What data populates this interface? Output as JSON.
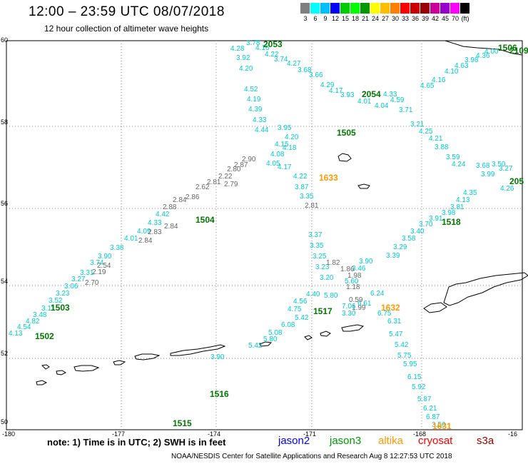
{
  "header": {
    "title": "12:00 – 23:59 UTC 08/07/2018",
    "subtitle": "12 hour collection of altimeter wave heights"
  },
  "scale": {
    "colors": [
      "#808080",
      "#00ffff",
      "#00bfff",
      "#0000ff",
      "#00cc00",
      "#00ff00",
      "#009900",
      "#ffff00",
      "#ffbf00",
      "#ff8000",
      "#ff0000",
      "#cc0000",
      "#990000",
      "#cc0099",
      "#9900cc",
      "#ff00ff",
      "#000000"
    ],
    "labels": [
      "3",
      "6",
      "9",
      "12",
      "15",
      "18",
      "21",
      "24",
      "27",
      "30",
      "33",
      "36",
      "39",
      "42",
      "45",
      "70",
      "(ft)"
    ]
  },
  "axes": {
    "y_labels": [
      "60",
      "58",
      "56",
      "54",
      "52",
      "50"
    ],
    "x_labels": [
      "-180",
      "-177",
      "-174",
      "-171",
      "-168",
      "-16"
    ]
  },
  "satellites": [
    {
      "name": "jason2",
      "color": "#0000ff"
    },
    {
      "name": "jason3",
      "color": "#009900"
    },
    {
      "name": "altika",
      "color": "#ff9900"
    },
    {
      "name": "cryosat",
      "color": "#ff0000"
    },
    {
      "name": "s3a",
      "color": "#990000"
    }
  ],
  "note": "note:  1) Time is in UTC;  2) SWH is in feet",
  "footer": "NOAA/NESDIS Center for Satellite Applications and Research     Aug  8 12:27:53 UTC 2018",
  "pass_labels": [
    {
      "text": "2053",
      "color": "#007700"
    },
    {
      "text": "2054",
      "color": "#007700"
    },
    {
      "text": "1505",
      "color": "#007700"
    },
    {
      "text": "1633",
      "color": "#ff9900"
    },
    {
      "text": "1504",
      "color": "#007700"
    },
    {
      "text": "1518",
      "color": "#007700"
    },
    {
      "text": "1503",
      "color": "#007700"
    },
    {
      "text": "1517",
      "color": "#007700"
    },
    {
      "text": "1632",
      "color": "#ff9900"
    },
    {
      "text": "1502",
      "color": "#007700"
    },
    {
      "text": "1516",
      "color": "#007700"
    },
    {
      "text": "1515",
      "color": "#007700"
    },
    {
      "text": "1631",
      "color": "#ff9900"
    },
    {
      "text": "1506",
      "color": "#007700"
    },
    {
      "text": "2109",
      "color": "#007700"
    },
    {
      "text": "205",
      "color": "#007700"
    }
  ],
  "track_values": [
    "3.78",
    "4.28",
    "3.92",
    "4.20",
    "4.16",
    "4.22",
    "3.74",
    "4.27",
    "3.68",
    "3.66",
    "4.29",
    "4.17",
    "3.93",
    "4.01",
    "4.04",
    "4.52",
    "4.19",
    "4.39",
    "4.33",
    "4.44",
    "3.95",
    "4.20",
    "4.08",
    "4.15",
    "4.18",
    "4.05",
    "4.17",
    "4.22",
    "3.87",
    "3.35",
    "3.37",
    "3.35",
    "3.25",
    "3.23",
    "3.20",
    "4.00",
    "4.36",
    "3.98",
    "4.63",
    "4.10",
    "4.16",
    "4.65",
    "4.33",
    "4.59",
    "3.71",
    "3.21",
    "4.25",
    "4.21",
    "3.88",
    "3.59",
    "4.24",
    "3.68",
    "3.50",
    "3.99",
    "3.27",
    "4.26",
    "4.35",
    "4.13",
    "3.81",
    "3.98",
    "3.91",
    "3.70",
    "3.40",
    "3.58",
    "3.29",
    "3.39",
    "3.90",
    "3.46",
    "4.13",
    "4.54",
    "4.82",
    "3.48",
    "3.11",
    "3.52",
    "3.23",
    "3.06",
    "3.27",
    "3.31",
    "3.74",
    "3.90",
    "3.38",
    "4.01",
    "4.09",
    "4.33",
    "4.42",
    "2.88",
    "2.84",
    "2.86",
    "2.62",
    "2.81",
    "2.22",
    "2.80",
    "2.87",
    "2.90",
    "2.79",
    "2.84",
    "2.83",
    "2.84",
    "2.54",
    "2.19",
    "2.70",
    "2.81",
    "1.82",
    "1.86",
    "1.98",
    "1.18",
    "0.59",
    "1.99",
    "3.30",
    "4.40",
    "4.56",
    "4.75",
    "5.42",
    "6.08",
    "5.08",
    "5.80",
    "5.42",
    "5.60",
    "6.24",
    "5.80",
    "7.06",
    "6.61",
    "6.75",
    "6.31",
    "5.47",
    "5.42",
    "5.75",
    "5.95",
    "6.15",
    "5.92",
    "5.87",
    "6.21",
    "6.87",
    "3.56",
    "3.90"
  ]
}
